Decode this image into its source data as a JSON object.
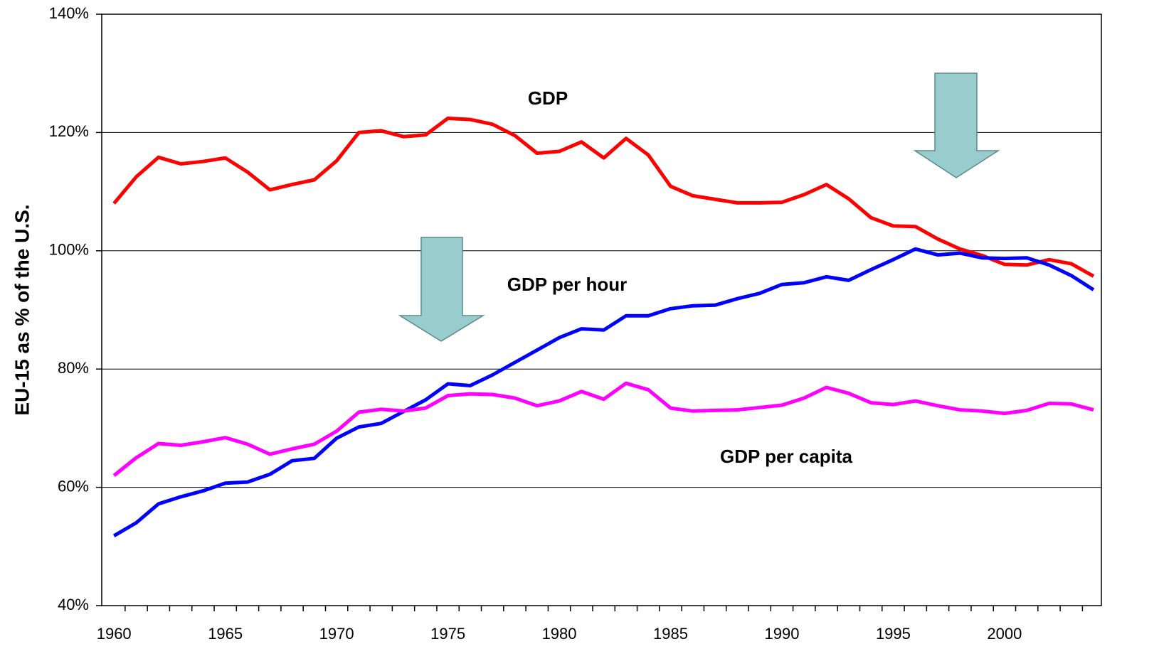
{
  "chart_data": {
    "type": "line",
    "y_axis_label": "EU-15 as % of the U.S.",
    "x": [
      1960,
      1961,
      1962,
      1963,
      1964,
      1965,
      1966,
      1967,
      1968,
      1969,
      1970,
      1971,
      1972,
      1973,
      1974,
      1975,
      1976,
      1977,
      1978,
      1979,
      1980,
      1981,
      1982,
      1983,
      1984,
      1985,
      1986,
      1987,
      1988,
      1989,
      1990,
      1991,
      1992,
      1993,
      1994,
      1995,
      1996,
      1997,
      1998,
      1999,
      2000,
      2001,
      2002,
      2003,
      2004
    ],
    "series": [
      {
        "name": "GDP",
        "color": "#ff0000",
        "values": [
          108,
          112.5,
          115.8,
          114.7,
          115.1,
          115.7,
          113.3,
          110.3,
          111.2,
          112,
          115.2,
          120,
          120.3,
          119.3,
          119.6,
          122.4,
          122.2,
          121.4,
          119.5,
          116.5,
          116.8,
          118.4,
          115.7,
          119,
          116.2,
          110.9,
          109.3,
          108.7,
          108.1,
          108.1,
          108.2,
          109.5,
          111.2,
          108.8,
          105.6,
          104.2,
          104.1,
          102,
          100.3,
          99.2,
          97.7,
          97.6,
          98.5,
          97.8,
          95.7
        ]
      },
      {
        "name": "GDP per hour",
        "color": "#0000ff",
        "values": [
          51.8,
          54,
          57.2,
          58.4,
          59.4,
          60.7,
          60.9,
          62.2,
          64.5,
          64.9,
          68.3,
          70.2,
          70.8,
          72.8,
          74.8,
          77.5,
          77.2,
          79,
          81.1,
          83.2,
          85.3,
          86.8,
          86.6,
          89,
          89,
          90.2,
          90.7,
          90.8,
          91.9,
          92.8,
          94.3,
          94.6,
          95.6,
          95,
          96.8,
          98.5,
          100.3,
          99.3,
          99.6,
          98.8,
          98.7,
          98.8,
          97.6,
          95.8,
          93.4
        ]
      },
      {
        "name": "GDP per capita",
        "color": "#ff00ff",
        "values": [
          62,
          65,
          67.4,
          67.1,
          67.7,
          68.4,
          67.3,
          65.6,
          66.5,
          67.3,
          69.5,
          72.7,
          73.2,
          72.9,
          73.4,
          75.5,
          75.8,
          75.7,
          75.1,
          73.8,
          74.6,
          76.2,
          74.9,
          77.6,
          76.5,
          73.4,
          72.9,
          73,
          73.1,
          73.5,
          73.9,
          75.1,
          76.9,
          75.9,
          74.3,
          74,
          74.6,
          73.8,
          73.1,
          72.9,
          72.5,
          73,
          74.2,
          74.1,
          73.1
        ]
      }
    ],
    "xlim": [
      1959.45,
      2004.35
    ],
    "xticks": [
      1960,
      1965,
      1970,
      1975,
      1980,
      1985,
      1990,
      1995,
      2000
    ],
    "ylim": [
      40,
      140
    ],
    "yticks": [
      {
        "value": 40,
        "label": "40%"
      },
      {
        "value": 60,
        "label": "60%"
      },
      {
        "value": 80,
        "label": "80%"
      },
      {
        "value": 100,
        "label": "100%"
      },
      {
        "value": 120,
        "label": "120%"
      },
      {
        "value": 140,
        "label": "140%"
      }
    ],
    "grid": true
  }
}
